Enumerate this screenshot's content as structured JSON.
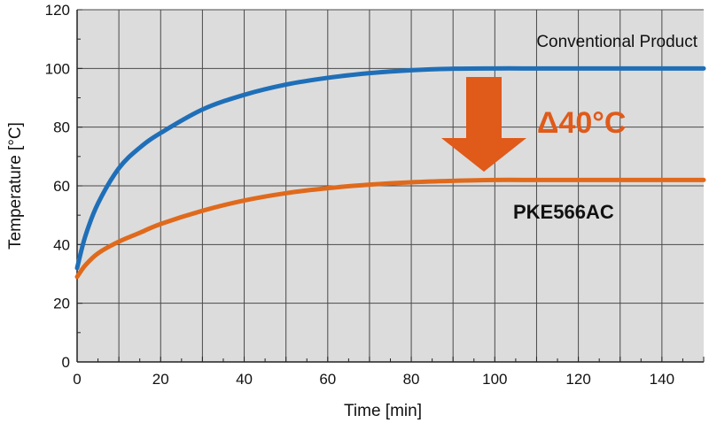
{
  "chart_data": {
    "type": "line",
    "title": "",
    "xlabel": "Time [min]",
    "ylabel": "Temperature [°C]",
    "xlim": [
      0,
      150
    ],
    "ylim": [
      0,
      120
    ],
    "xticks": [
      0,
      20,
      40,
      60,
      80,
      100,
      120,
      140
    ],
    "yticks": [
      0,
      20,
      40,
      60,
      80,
      100,
      120
    ],
    "grid": true,
    "series": [
      {
        "name": "Conventional Product",
        "color": "#1f6fb8",
        "x": [
          0,
          2,
          5,
          10,
          15,
          20,
          30,
          40,
          50,
          60,
          70,
          80,
          90,
          100,
          110,
          120,
          130,
          140,
          150
        ],
        "y": [
          32,
          43,
          54,
          66,
          73,
          78,
          86,
          91,
          94.5,
          96.8,
          98.4,
          99.4,
          99.9,
          100,
          100,
          100,
          100,
          100,
          100
        ]
      },
      {
        "name": "PKE566AC",
        "color": "#e06a1c",
        "x": [
          0,
          2,
          5,
          10,
          15,
          20,
          30,
          40,
          50,
          60,
          70,
          80,
          90,
          100,
          110,
          120,
          130,
          140,
          150
        ],
        "y": [
          29,
          33,
          37,
          41,
          44,
          47,
          51.5,
          55,
          57.5,
          59.2,
          60.4,
          61.2,
          61.7,
          62,
          62,
          62,
          62,
          62,
          62
        ]
      }
    ],
    "annotations": {
      "delta_label": "Δ40°C",
      "delta_color": "#e05a1a"
    }
  }
}
